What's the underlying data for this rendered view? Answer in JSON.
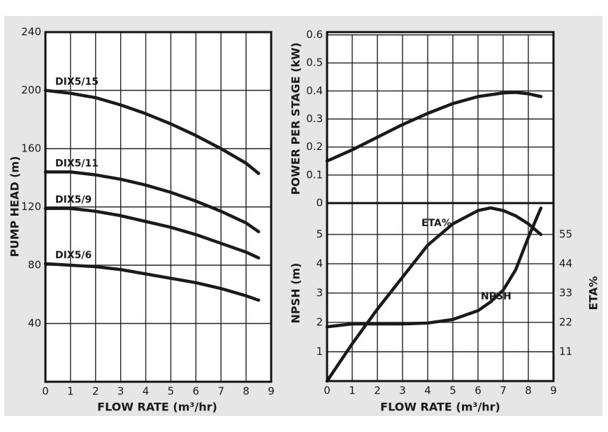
{
  "chart_data": [
    {
      "type": "line",
      "x_label": "FLOW RATE (m³/hr)",
      "y_label": "PUMP HEAD (m)",
      "x": [
        0,
        1,
        2,
        3,
        4,
        5,
        6,
        7,
        8,
        8.5
      ],
      "series": [
        {
          "name": "DIX5/15",
          "color": "#1a1a1a",
          "values": [
            200,
            198,
            195,
            190,
            184,
            177,
            169,
            160,
            150,
            143
          ]
        },
        {
          "name": "DIX5/11",
          "color": "#1a1a1a",
          "values": [
            144,
            144,
            142,
            139,
            135,
            130,
            124,
            117,
            109,
            103
          ]
        },
        {
          "name": "DIX5/9",
          "color": "#1a1a1a",
          "values": [
            119,
            119,
            117,
            114,
            110,
            106,
            101,
            95,
            89,
            85
          ]
        },
        {
          "name": "DIX5/6",
          "color": "#1a1a1a",
          "values": [
            81,
            80,
            79,
            77,
            74,
            71,
            68,
            64,
            59,
            56
          ]
        }
      ],
      "xlim": [
        0,
        9
      ],
      "xticks": [
        0,
        1,
        2,
        3,
        4,
        5,
        6,
        7,
        8,
        9
      ],
      "ylim": [
        0,
        240
      ],
      "yticks": [
        40,
        80,
        120,
        160,
        200,
        240
      ],
      "grid": true
    },
    {
      "type": "line",
      "y_label": "POWER PER STAGE (kW)",
      "x": [
        0,
        1,
        2,
        3,
        4,
        5,
        6,
        7,
        7.5,
        8,
        8.5
      ],
      "series": [
        {
          "color": "#1a1a1a",
          "values": [
            0.15,
            0.19,
            0.235,
            0.28,
            0.32,
            0.355,
            0.38,
            0.393,
            0.395,
            0.39,
            0.38
          ]
        }
      ],
      "xlim": [
        0,
        9
      ],
      "ylim": [
        0,
        0.6
      ],
      "yticks": [
        0,
        0.1,
        0.2,
        0.3,
        0.4,
        0.5,
        0.6
      ],
      "grid": true
    },
    {
      "type": "line",
      "x_label": "FLOW RATE (m³/hr)",
      "y_label": "NPSH (m)",
      "y2_label": "ETA%",
      "x": [
        0,
        1,
        2,
        3,
        4,
        5,
        6,
        6.5,
        7,
        7.5,
        8,
        8.5
      ],
      "series": [
        {
          "name": "ETA%",
          "color": "#1a1a1a",
          "axis": "y2",
          "values": [
            0,
            14,
            27,
            39,
            51,
            59,
            64,
            65,
            64,
            62,
            59,
            55
          ]
        },
        {
          "name": "NPSH",
          "color": "#1a1a1a",
          "values": [
            1.85,
            1.95,
            1.95,
            1.95,
            1.98,
            2.1,
            2.4,
            2.7,
            3.1,
            3.8,
            4.9,
            5.9
          ]
        }
      ],
      "xlim": [
        0,
        9
      ],
      "xticks": [
        0,
        1,
        2,
        3,
        4,
        5,
        6,
        7,
        8,
        9
      ],
      "ylim": [
        0,
        6.07
      ],
      "yticks": [
        1,
        2,
        3,
        4,
        5
      ],
      "y2lim": [
        0,
        66.8
      ],
      "y2ticks": [
        11,
        22,
        33,
        44,
        55
      ],
      "grid": true
    }
  ]
}
